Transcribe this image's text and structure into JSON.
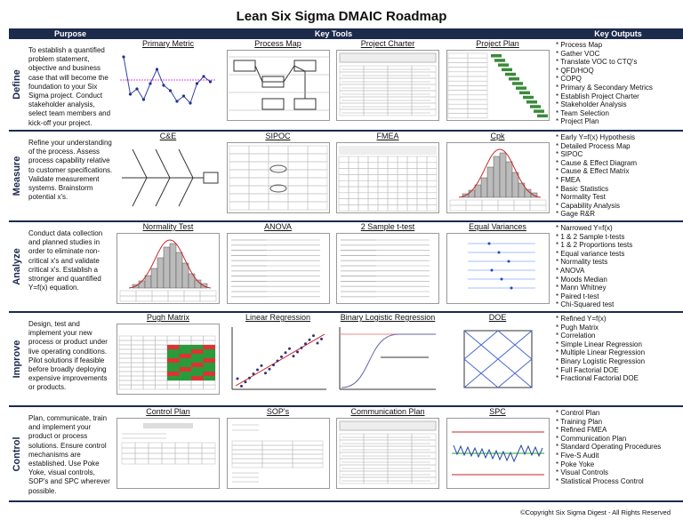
{
  "header": {
    "title": "Lean Six Sigma DMAIC Roadmap"
  },
  "columns": [
    "Purpose",
    "Key Tools",
    "Key Outputs"
  ],
  "phases": [
    {
      "name": "Define",
      "purpose": "To establish a quantified problem statement, objective and business case that will become the foundation to your Six Sigma project.  Conduct stakeholder analysis, select team members and kick-off your project.",
      "tools": [
        "Primary Metric",
        "Process Map",
        "Project Charter",
        "Project Plan"
      ],
      "outputs": [
        "* Process Map",
        "* Gather VOC",
        "* Translate VOC to CTQ's",
        "* QFD/HOQ",
        "* COPQ",
        "* Primary & Secondary Metrics",
        "* Establish Project Charter",
        "* Stakeholder Analysis",
        "* Team Selection",
        "* Project Plan"
      ]
    },
    {
      "name": "Measure",
      "purpose": "Refine your understanding of the process. Assess process capability relative to customer specifications. Validate measurement systems. Brainstorm potential x's.",
      "tools": [
        "C&E",
        "SIPOC",
        "FMEA",
        "Cpk"
      ],
      "outputs": [
        "* Early Y=f(x) Hypothesis",
        "* Detailed Process Map",
        "* SIPOC",
        "* Cause & Effect Diagram",
        "* Cause & Effect Matrix",
        "* FMEA",
        "* Basic Statistics",
        "* Normality Test",
        "* Capability Analysis",
        "* Gage R&R"
      ]
    },
    {
      "name": "Analyze",
      "purpose": "Conduct data collection and planned studies in order to eliminate non-critical x's and validate critical x's.  Establish a stronger and quantified Y=f(x) equation.",
      "tools": [
        "Normality Test",
        "ANOVA",
        "2 Sample t-test",
        "Equal Variances"
      ],
      "outputs": [
        "* Narrowed Y=f(x)",
        "* 1 & 2 Sample t-tests",
        "* 1 & 2 Proportions tests",
        "* Equal variance tests",
        "* Normality tests",
        "* ANOVA",
        "* Moods Median",
        "* Mann Whitney",
        "* Paired t-test",
        "* Chi-Squared test"
      ]
    },
    {
      "name": "Improve",
      "purpose": "Design, test and implement your new process or product under live operating conditions. Pilot solutions if feasible before broadly deploying expensive improvements or products.",
      "tools": [
        "Pugh Matrix",
        "Linear Regression",
        "Binary Logistic Regression",
        "DOE"
      ],
      "outputs": [
        "* Refined Y=f(x)",
        "* Pugh Matrix",
        "* Correlation",
        "* Simple Linear Regression",
        "* Multiple Linear Regression",
        "* Binary Logistic Regression",
        "* Full Factorial DOE",
        "* Fractional Factorial DOE"
      ]
    },
    {
      "name": "Control",
      "purpose": "Plan, communicate, train and implement your product or process solutions. Ensure control mechanisms are established. Use Poke Yoke, visual controls, SOP's and SPC wherever possible.",
      "tools": [
        "Control Plan",
        "SOP's",
        "Communication Plan",
        "SPC"
      ],
      "outputs": [
        "* Control Plan",
        "* Training Plan",
        "* Refined FMEA",
        "* Communication Plan",
        "* Standard Operating Procedures",
        "* Five-S Audit",
        "* Poke Yoke",
        "* Visual Controls",
        "* Statistical Process Control"
      ]
    }
  ],
  "copyright": "©Copyright Six Sigma Digest - All Rights Reserved"
}
